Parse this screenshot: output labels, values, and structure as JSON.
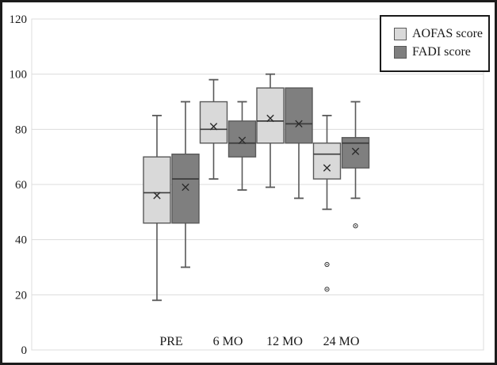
{
  "figure": {
    "background": "#ffffff",
    "border_color": "#1c1c1c",
    "gridline_color": "#dcdcdc",
    "text_color": "#1a1a1a",
    "box_stroke_color": "#595959"
  },
  "legend": {
    "position": "top-right",
    "items": [
      {
        "label": "AOFAS score",
        "swatch_color": "#d9d9d9"
      },
      {
        "label": "FADI score",
        "swatch_color": "#7f7f7f"
      }
    ]
  },
  "chart_data": {
    "type": "boxplot",
    "title": "",
    "xlabel": "",
    "ylabel": "",
    "categories": [
      "PRE",
      "6 MO",
      "12 MO",
      "24 MO"
    ],
    "ylim": [
      0,
      120
    ],
    "y_ticks": [
      0,
      20,
      40,
      60,
      80,
      100,
      120
    ],
    "grid": true,
    "legend_entries": [
      "AOFAS score",
      "FADI score"
    ],
    "series": [
      {
        "name": "AOFAS score",
        "fill": "#d9d9d9",
        "boxes": [
          {
            "category": "PRE",
            "min": 18,
            "q1": 46,
            "median": 57,
            "mean": 56,
            "q3": 70,
            "max": 85,
            "outliers": []
          },
          {
            "category": "6 MO",
            "min": 62,
            "q1": 75,
            "median": 80,
            "mean": 81,
            "q3": 90,
            "max": 98,
            "outliers": []
          },
          {
            "category": "12 MO",
            "min": 59,
            "q1": 75,
            "median": 83,
            "mean": 84,
            "q3": 95,
            "max": 100,
            "outliers": []
          },
          {
            "category": "24 MO",
            "min": 51,
            "q1": 62,
            "median": 71,
            "mean": 66,
            "q3": 75,
            "max": 85,
            "outliers": [
              31,
              22
            ]
          }
        ]
      },
      {
        "name": "FADI score",
        "fill": "#7f7f7f",
        "boxes": [
          {
            "category": "PRE",
            "min": 30,
            "q1": 46,
            "median": 62,
            "mean": 59,
            "q3": 71,
            "max": 90,
            "outliers": []
          },
          {
            "category": "6 MO",
            "min": 58,
            "q1": 70,
            "median": 75,
            "mean": 76,
            "q3": 83,
            "max": 90,
            "outliers": []
          },
          {
            "category": "12 MO",
            "min": 55,
            "q1": 75,
            "median": 82,
            "mean": 82,
            "q3": 95,
            "max": 95,
            "outliers": []
          },
          {
            "category": "24 MO",
            "min": 55,
            "q1": 66,
            "median": 75,
            "mean": 72,
            "q3": 77,
            "max": 90,
            "outliers": [
              45
            ]
          }
        ]
      }
    ]
  }
}
